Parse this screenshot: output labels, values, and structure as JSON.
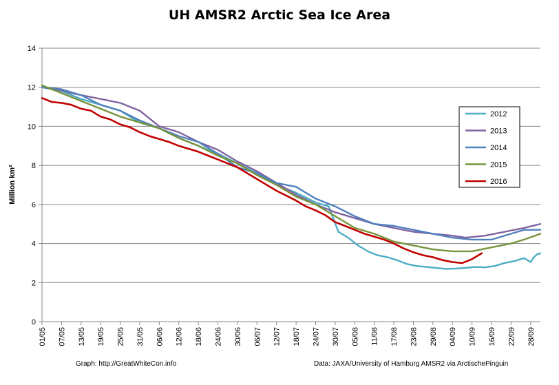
{
  "chart_data": {
    "type": "line",
    "title": "UH AMSR2 Arctic Sea Ice Area",
    "ylabel": "Million km²",
    "ylim": [
      0,
      14
    ],
    "yticks": [
      0,
      2,
      4,
      6,
      8,
      10,
      12,
      14
    ],
    "xrange_days": [
      0,
      153
    ],
    "xticks": [
      "01/05",
      "07/05",
      "13/05",
      "19/05",
      "25/05",
      "31/05",
      "06/06",
      "12/06",
      "18/06",
      "24/06",
      "30/06",
      "06/07",
      "12/07",
      "18/07",
      "24/07",
      "30/07",
      "05/08",
      "11/08",
      "17/08",
      "23/08",
      "29/08",
      "04/09",
      "10/09",
      "16/09",
      "22/09",
      "28/09"
    ],
    "xtick_step_days": 6,
    "legend_position": "right",
    "credit_left": "Graph: http://GreatWhiteCon.info",
    "credit_right": "Data: JAXA/University of Hamburg AMSR2 via  ArctischePinguin",
    "series": [
      {
        "name": "2012",
        "color": "#4BACC6",
        "x": [
          0,
          6,
          12,
          18,
          24,
          30,
          36,
          42,
          48,
          54,
          60,
          66,
          72,
          78,
          84,
          88,
          91,
          94,
          97,
          100,
          103,
          106,
          109,
          112,
          115,
          118,
          121,
          124,
          127,
          130,
          133,
          136,
          139,
          142,
          145,
          148,
          150,
          151,
          152,
          153
        ],
        "y": [
          12.0,
          11.8,
          11.4,
          11.1,
          10.8,
          10.2,
          9.9,
          9.4,
          9.0,
          8.6,
          8.1,
          7.6,
          7.0,
          6.6,
          6.1,
          5.9,
          4.6,
          4.3,
          3.9,
          3.6,
          3.4,
          3.3,
          3.15,
          2.95,
          2.85,
          2.8,
          2.75,
          2.7,
          2.72,
          2.75,
          2.8,
          2.78,
          2.85,
          3.0,
          3.1,
          3.25,
          3.05,
          3.3,
          3.45,
          3.5
        ]
      },
      {
        "name": "2013",
        "color": "#8064A2",
        "x": [
          0,
          6,
          9,
          12,
          18,
          24,
          30,
          36,
          42,
          48,
          54,
          60,
          66,
          72,
          78,
          84,
          90,
          96,
          102,
          108,
          114,
          120,
          126,
          130,
          136,
          142,
          148,
          153
        ],
        "y": [
          12.0,
          11.85,
          11.7,
          11.6,
          11.4,
          11.2,
          10.8,
          10.0,
          9.7,
          9.2,
          8.8,
          8.2,
          7.7,
          7.1,
          6.5,
          6.0,
          5.6,
          5.3,
          5.0,
          4.8,
          4.6,
          4.5,
          4.4,
          4.3,
          4.4,
          4.6,
          4.8,
          5.0
        ]
      },
      {
        "name": "2014",
        "color": "#4F81BD",
        "x": [
          0,
          6,
          12,
          18,
          24,
          30,
          36,
          42,
          48,
          54,
          60,
          66,
          72,
          78,
          84,
          90,
          96,
          102,
          108,
          114,
          120,
          126,
          132,
          138,
          144,
          148,
          153
        ],
        "y": [
          12.0,
          11.9,
          11.6,
          11.1,
          10.8,
          10.3,
          9.9,
          9.5,
          9.2,
          8.6,
          7.9,
          7.6,
          7.1,
          6.9,
          6.3,
          5.9,
          5.4,
          5.0,
          4.9,
          4.7,
          4.5,
          4.3,
          4.2,
          4.2,
          4.5,
          4.7,
          4.7
        ]
      },
      {
        "name": "2015",
        "color": "#77933C",
        "x": [
          0,
          6,
          12,
          18,
          24,
          30,
          36,
          42,
          48,
          54,
          60,
          66,
          72,
          78,
          84,
          90,
          96,
          102,
          108,
          114,
          120,
          126,
          132,
          138,
          144,
          148,
          153
        ],
        "y": [
          12.1,
          11.7,
          11.3,
          10.9,
          10.5,
          10.2,
          9.9,
          9.4,
          9.0,
          8.5,
          8.1,
          7.5,
          7.0,
          6.4,
          6.0,
          5.4,
          4.8,
          4.5,
          4.1,
          3.9,
          3.7,
          3.6,
          3.6,
          3.8,
          4.0,
          4.2,
          4.5
        ]
      },
      {
        "name": "2016",
        "color": "#C00000",
        "x": [
          0,
          3,
          6,
          9,
          12,
          15,
          18,
          21,
          24,
          27,
          30,
          33,
          36,
          39,
          42,
          45,
          48,
          51,
          54,
          57,
          60,
          63,
          66,
          69,
          72,
          75,
          78,
          81,
          84,
          87,
          90,
          93,
          96,
          99,
          102,
          105,
          108,
          111,
          114,
          117,
          120,
          123,
          126,
          129,
          132,
          135
        ],
        "y": [
          11.45,
          11.25,
          11.2,
          11.1,
          10.9,
          10.8,
          10.5,
          10.35,
          10.1,
          9.95,
          9.7,
          9.5,
          9.35,
          9.2,
          9.0,
          8.85,
          8.7,
          8.5,
          8.3,
          8.1,
          7.9,
          7.6,
          7.3,
          7.0,
          6.7,
          6.45,
          6.2,
          5.9,
          5.7,
          5.45,
          5.1,
          4.9,
          4.7,
          4.5,
          4.35,
          4.2,
          4.0,
          3.75,
          3.55,
          3.4,
          3.3,
          3.15,
          3.05,
          3.0,
          3.2,
          3.5
        ]
      }
    ]
  }
}
